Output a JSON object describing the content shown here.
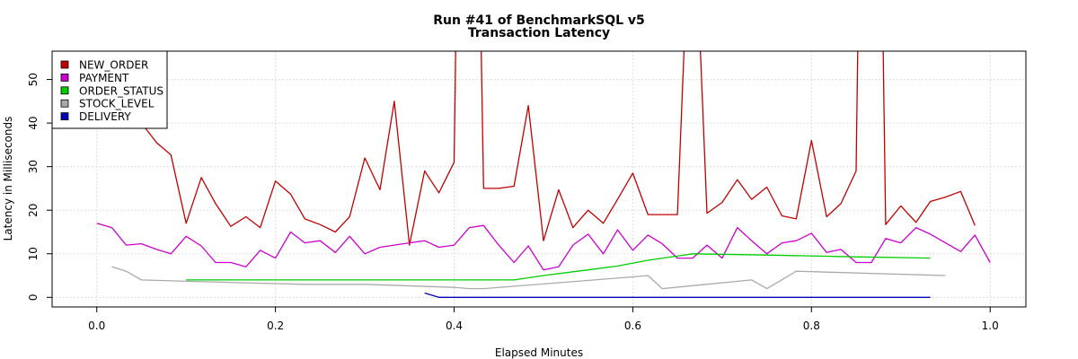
{
  "chart_data": {
    "type": "line",
    "title": "Run #41 of BenchmarkSQL v5",
    "subtitle": "Transaction Latency",
    "xlabel": "Elapsed Minutes",
    "ylabel": "Latency in Milliseconds",
    "xlim": [
      -0.05,
      1.04
    ],
    "ylim": [
      -2.2,
      56.5
    ],
    "xticks": [
      0.0,
      0.2,
      0.4,
      0.6,
      0.8,
      1.0
    ],
    "xtick_labels": [
      "0.0",
      "0.2",
      "0.4",
      "0.6",
      "0.8",
      "1.0"
    ],
    "yticks": [
      0,
      10,
      20,
      30,
      40,
      50
    ],
    "ytick_labels": [
      "0",
      "10",
      "20",
      "30",
      "40",
      "50"
    ],
    "grid": true,
    "legend_position": "top-left",
    "series": [
      {
        "name": "NEW_ORDER",
        "color": "#c00000",
        "points": [
          [
            0.05,
            40
          ],
          [
            0.067,
            35.5
          ],
          [
            0.083,
            32.7
          ],
          [
            0.1,
            17
          ],
          [
            0.117,
            27.5
          ],
          [
            0.133,
            21.5
          ],
          [
            0.15,
            16.3
          ],
          [
            0.167,
            18.5
          ],
          [
            0.183,
            16
          ],
          [
            0.2,
            26.7
          ],
          [
            0.217,
            23.7
          ],
          [
            0.233,
            18
          ],
          [
            0.25,
            16.7
          ],
          [
            0.267,
            15
          ],
          [
            0.283,
            18.5
          ],
          [
            0.3,
            32
          ],
          [
            0.317,
            24.7
          ],
          [
            0.333,
            45
          ],
          [
            0.35,
            12
          ],
          [
            0.367,
            29
          ],
          [
            0.383,
            24
          ],
          [
            0.4,
            31
          ],
          [
            0.402,
            60
          ],
          [
            0.43,
            60
          ],
          [
            0.433,
            25
          ],
          [
            0.45,
            25
          ],
          [
            0.467,
            25.5
          ],
          [
            0.483,
            44
          ],
          [
            0.5,
            13
          ],
          [
            0.517,
            24.7
          ],
          [
            0.533,
            16
          ],
          [
            0.55,
            20
          ],
          [
            0.567,
            17
          ],
          [
            0.583,
            22.5
          ],
          [
            0.6,
            28.5
          ],
          [
            0.617,
            19
          ],
          [
            0.633,
            19
          ],
          [
            0.65,
            19
          ],
          [
            0.658,
            60
          ],
          [
            0.675,
            60
          ],
          [
            0.683,
            19.3
          ],
          [
            0.7,
            21.8
          ],
          [
            0.717,
            27
          ],
          [
            0.733,
            22.5
          ],
          [
            0.75,
            25.3
          ],
          [
            0.767,
            18.7
          ],
          [
            0.783,
            18
          ],
          [
            0.8,
            36
          ],
          [
            0.817,
            18.5
          ],
          [
            0.833,
            21.5
          ],
          [
            0.85,
            29
          ],
          [
            0.852,
            60
          ],
          [
            0.88,
            60
          ],
          [
            0.883,
            16.7
          ],
          [
            0.9,
            21
          ],
          [
            0.917,
            17.2
          ],
          [
            0.933,
            22
          ],
          [
            0.95,
            23
          ],
          [
            0.967,
            24.3
          ],
          [
            0.983,
            16.5
          ]
        ]
      },
      {
        "name": "PAYMENT",
        "color": "#cc00cc",
        "points": [
          [
            0.0,
            17
          ],
          [
            0.017,
            16
          ],
          [
            0.033,
            12
          ],
          [
            0.05,
            12.3
          ],
          [
            0.067,
            11
          ],
          [
            0.083,
            10
          ],
          [
            0.1,
            14
          ],
          [
            0.117,
            11.8
          ],
          [
            0.133,
            8
          ],
          [
            0.15,
            8
          ],
          [
            0.167,
            7
          ],
          [
            0.183,
            10.8
          ],
          [
            0.2,
            9
          ],
          [
            0.217,
            15
          ],
          [
            0.233,
            12.5
          ],
          [
            0.25,
            13
          ],
          [
            0.267,
            10.3
          ],
          [
            0.283,
            14
          ],
          [
            0.3,
            10
          ],
          [
            0.317,
            11.5
          ],
          [
            0.333,
            12
          ],
          [
            0.35,
            12.5
          ],
          [
            0.367,
            13
          ],
          [
            0.383,
            11.5
          ],
          [
            0.4,
            12
          ],
          [
            0.417,
            16
          ],
          [
            0.433,
            16.5
          ],
          [
            0.45,
            12
          ],
          [
            0.467,
            8
          ],
          [
            0.483,
            11.8
          ],
          [
            0.5,
            6.3
          ],
          [
            0.517,
            7
          ],
          [
            0.533,
            12
          ],
          [
            0.55,
            14.5
          ],
          [
            0.567,
            10
          ],
          [
            0.583,
            15.5
          ],
          [
            0.6,
            10.8
          ],
          [
            0.617,
            14.3
          ],
          [
            0.633,
            12.3
          ],
          [
            0.65,
            9
          ],
          [
            0.667,
            9
          ],
          [
            0.683,
            12
          ],
          [
            0.7,
            9
          ],
          [
            0.717,
            16
          ],
          [
            0.733,
            13
          ],
          [
            0.75,
            10
          ],
          [
            0.767,
            12.5
          ],
          [
            0.783,
            13
          ],
          [
            0.8,
            14.7
          ],
          [
            0.817,
            10.3
          ],
          [
            0.833,
            11
          ],
          [
            0.85,
            8
          ],
          [
            0.867,
            8
          ],
          [
            0.883,
            13.5
          ],
          [
            0.9,
            12.5
          ],
          [
            0.917,
            16
          ],
          [
            0.933,
            14.5
          ],
          [
            0.95,
            12.5
          ],
          [
            0.967,
            10.5
          ],
          [
            0.983,
            14.3
          ],
          [
            1.0,
            8
          ]
        ]
      },
      {
        "name": "ORDER_STATUS",
        "color": "#00cc00",
        "points": [
          [
            0.1,
            4
          ],
          [
            0.35,
            4
          ],
          [
            0.467,
            4
          ],
          [
            0.5,
            5
          ],
          [
            0.55,
            6.3
          ],
          [
            0.583,
            7.2
          ],
          [
            0.617,
            8.5
          ],
          [
            0.667,
            10
          ],
          [
            0.75,
            9.7
          ],
          [
            0.85,
            9.3
          ],
          [
            0.933,
            9
          ]
        ]
      },
      {
        "name": "STOCK_LEVEL",
        "color": "#aaaaaa",
        "points": [
          [
            0.017,
            7
          ],
          [
            0.033,
            6
          ],
          [
            0.05,
            4
          ],
          [
            0.1,
            3.7
          ],
          [
            0.233,
            3
          ],
          [
            0.3,
            3
          ],
          [
            0.4,
            2.3
          ],
          [
            0.417,
            2
          ],
          [
            0.433,
            2
          ],
          [
            0.6,
            4.7
          ],
          [
            0.617,
            5
          ],
          [
            0.633,
            2
          ],
          [
            0.733,
            4
          ],
          [
            0.75,
            2
          ],
          [
            0.783,
            6
          ],
          [
            0.817,
            5.8
          ],
          [
            0.95,
            5
          ]
        ]
      },
      {
        "name": "DELIVERY",
        "color": "#0000bb",
        "points": [
          [
            0.367,
            1
          ],
          [
            0.383,
            0
          ],
          [
            0.933,
            0
          ]
        ]
      }
    ]
  }
}
